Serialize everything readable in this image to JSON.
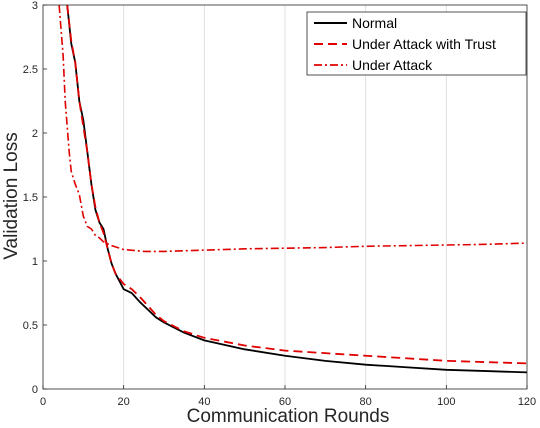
{
  "chart_data": {
    "type": "line",
    "title": "",
    "xlabel": "Communication Rounds",
    "ylabel": "Validation Loss",
    "xlim": [
      0,
      120
    ],
    "ylim": [
      0,
      3
    ],
    "xticks": [
      0,
      20,
      40,
      60,
      80,
      100,
      120
    ],
    "yticks": [
      0,
      0.5,
      1,
      1.5,
      2,
      2.5,
      3
    ],
    "xtick_labels": [
      "0",
      "20",
      "40",
      "60",
      "80",
      "100",
      "120"
    ],
    "ytick_labels": [
      "0",
      "0.5",
      "1",
      "1.5",
      "2",
      "2.5",
      "3"
    ],
    "grid": true,
    "legend_position": "top-right",
    "series": [
      {
        "name": "Normal",
        "color": "#000000",
        "style": "solid",
        "x": [
          6,
          7,
          8,
          9,
          10,
          11,
          12,
          13,
          14,
          15,
          16,
          17,
          18,
          19,
          20,
          22,
          24,
          26,
          28,
          30,
          35,
          40,
          50,
          60,
          70,
          80,
          90,
          100,
          110,
          120
        ],
        "y": [
          3.0,
          2.7,
          2.55,
          2.25,
          2.1,
          1.85,
          1.6,
          1.4,
          1.3,
          1.25,
          1.1,
          0.98,
          0.9,
          0.84,
          0.78,
          0.75,
          0.68,
          0.62,
          0.56,
          0.52,
          0.44,
          0.38,
          0.31,
          0.26,
          0.22,
          0.19,
          0.17,
          0.15,
          0.14,
          0.13
        ]
      },
      {
        "name": "Under Attack with Trust",
        "color": "#e00000",
        "style": "dashed",
        "x": [
          6,
          7,
          8,
          9,
          10,
          11,
          12,
          13,
          14,
          15,
          16,
          17,
          18,
          19,
          20,
          22,
          24,
          26,
          28,
          30,
          35,
          40,
          50,
          60,
          70,
          80,
          90,
          100,
          110,
          120
        ],
        "y": [
          3.0,
          2.72,
          2.55,
          2.25,
          2.05,
          1.85,
          1.6,
          1.42,
          1.3,
          1.22,
          1.1,
          0.98,
          0.9,
          0.86,
          0.82,
          0.78,
          0.72,
          0.65,
          0.58,
          0.53,
          0.45,
          0.4,
          0.34,
          0.3,
          0.28,
          0.26,
          0.24,
          0.22,
          0.21,
          0.2
        ]
      },
      {
        "name": "Under Attack",
        "color": "#e00000",
        "style": "dashdot",
        "x": [
          4,
          5,
          5.5,
          6,
          6.5,
          7,
          8,
          9,
          10,
          11,
          12,
          13,
          14,
          15,
          17,
          20,
          25,
          30,
          40,
          50,
          60,
          70,
          80,
          90,
          100,
          110,
          120
        ],
        "y": [
          3.0,
          2.6,
          2.25,
          2.05,
          1.85,
          1.7,
          1.6,
          1.52,
          1.35,
          1.27,
          1.25,
          1.2,
          1.18,
          1.15,
          1.12,
          1.09,
          1.075,
          1.075,
          1.085,
          1.095,
          1.1,
          1.105,
          1.115,
          1.12,
          1.125,
          1.13,
          1.14
        ]
      }
    ]
  }
}
